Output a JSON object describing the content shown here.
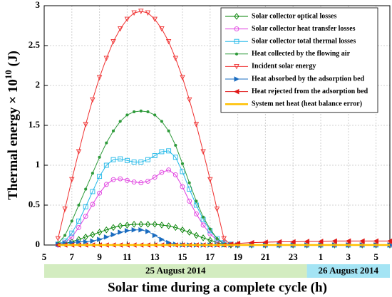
{
  "chart_data": {
    "type": "line",
    "xlabel": "Solar time during a complete cycle (h)",
    "ylabel": {
      "text": "Thermal energy × 10",
      "exponent": "10",
      "unit": " (J)"
    },
    "xlim": [
      5,
      30
    ],
    "ylim": [
      0,
      3
    ],
    "xticks": [
      5,
      7,
      9,
      11,
      13,
      15,
      17,
      19,
      21,
      23,
      {
        "value": 25,
        "label": "1"
      },
      {
        "value": 27,
        "label": "3"
      },
      {
        "value": 29,
        "label": "5"
      }
    ],
    "yticks": [
      0,
      0.5,
      1,
      1.5,
      2,
      2.5,
      3
    ],
    "grid": true,
    "legend": "upper right",
    "date_bands": [
      {
        "label": "25 August 2014",
        "start": 5,
        "end": 24,
        "color": "#d3ecc0"
      },
      {
        "label": "26 August 2014",
        "start": 24,
        "end": 30,
        "color": "#a4e4f4"
      }
    ],
    "x": [
      6,
      6.5,
      7,
      7.5,
      8,
      8.5,
      9,
      9.5,
      10,
      10.5,
      11,
      11.5,
      12,
      12.5,
      13,
      13.5,
      14,
      14.5,
      15,
      15.5,
      16,
      16.5,
      17,
      17.5,
      18,
      18.5,
      19,
      20,
      21,
      22,
      23,
      24,
      25,
      26,
      27,
      28,
      29,
      30
    ],
    "series": [
      {
        "name": "Solar collector optical losses",
        "color": "#008000",
        "marker": "diamond",
        "values": [
          0.01,
          0.02,
          0.04,
          0.07,
          0.1,
          0.13,
          0.16,
          0.19,
          0.22,
          0.24,
          0.25,
          0.26,
          0.26,
          0.26,
          0.26,
          0.25,
          0.24,
          0.22,
          0.19,
          0.16,
          0.12,
          0.09,
          0.06,
          0.03,
          0.01,
          0,
          0,
          0,
          0,
          0,
          0,
          0,
          0,
          0,
          0,
          0,
          0,
          0
        ]
      },
      {
        "name": "Solar collector heat transfer losses",
        "color": "#e040e0",
        "marker": "circle",
        "values": [
          0,
          0.03,
          0.1,
          0.22,
          0.36,
          0.51,
          0.65,
          0.76,
          0.82,
          0.83,
          0.81,
          0.79,
          0.78,
          0.8,
          0.85,
          0.91,
          0.94,
          0.88,
          0.73,
          0.55,
          0.39,
          0.25,
          0.14,
          0.06,
          0.02,
          0.01,
          0,
          0,
          0,
          0,
          0,
          0,
          0,
          0,
          0,
          0,
          0,
          0
        ]
      },
      {
        "name": "Solar collector total thermal losses",
        "color": "#20b8e8",
        "marker": "square",
        "values": [
          0.01,
          0.05,
          0.15,
          0.3,
          0.48,
          0.67,
          0.86,
          1.0,
          1.07,
          1.08,
          1.06,
          1.04,
          1.04,
          1.07,
          1.12,
          1.17,
          1.18,
          1.1,
          0.92,
          0.7,
          0.5,
          0.32,
          0.18,
          0.08,
          0.03,
          0.01,
          0,
          0,
          0,
          0,
          0,
          0,
          0,
          0,
          0,
          0,
          0,
          0
        ]
      },
      {
        "name": "Heat collected by the flowing air",
        "color": "#2e9a3a",
        "marker": "star",
        "values": [
          0.02,
          0.12,
          0.3,
          0.5,
          0.7,
          0.9,
          1.1,
          1.28,
          1.43,
          1.55,
          1.63,
          1.67,
          1.68,
          1.67,
          1.63,
          1.55,
          1.43,
          1.25,
          1.02,
          0.78,
          0.55,
          0.35,
          0.2,
          0.08,
          0.01,
          0,
          0,
          0,
          0,
          0,
          0,
          0,
          0,
          0,
          0,
          0,
          0,
          0
        ]
      },
      {
        "name": "Incident solar energy",
        "color": "#f03030",
        "marker": "triangle-down",
        "values": [
          0.08,
          0.45,
          0.82,
          1.17,
          1.51,
          1.82,
          2.1,
          2.34,
          2.55,
          2.71,
          2.83,
          2.91,
          2.93,
          2.91,
          2.83,
          2.71,
          2.55,
          2.34,
          2.1,
          1.82,
          1.51,
          1.17,
          0.82,
          0.45,
          0.08,
          0,
          0,
          0,
          0,
          0,
          0,
          0,
          0,
          0,
          0,
          0,
          0,
          0
        ]
      },
      {
        "name": "Heat absorbed by the adsorption bed",
        "color": "#1a6cc0",
        "marker": "triangle-right",
        "values": [
          0.01,
          0.02,
          0.03,
          0.04,
          0.04,
          0.05,
          0.07,
          0.1,
          0.13,
          0.16,
          0.18,
          0.19,
          0.19,
          0.17,
          0.12,
          0.07,
          0.03,
          0.01,
          0,
          0,
          0,
          0,
          0,
          0,
          0,
          0,
          0,
          0,
          0,
          0,
          0,
          0,
          0,
          0,
          0,
          0,
          0,
          0
        ]
      },
      {
        "name": "Heat rejected from the adsorption bed",
        "color": "#e01818",
        "marker": "triangle-left",
        "values": [
          0,
          0,
          0,
          0,
          0,
          0,
          0,
          0,
          0,
          0,
          0,
          0,
          0,
          0,
          0,
          0,
          0,
          0,
          0,
          0,
          0,
          0,
          0,
          0,
          0,
          0.01,
          0.02,
          0.03,
          0.035,
          0.04,
          0.04,
          0.045,
          0.045,
          0.05,
          0.05,
          0.05,
          0.05,
          0.05
        ]
      },
      {
        "name": "System net heat (heat balance error)",
        "color": "#ffc000",
        "marker": "none",
        "values": [
          0,
          0,
          0,
          0,
          0,
          0,
          0,
          0,
          0,
          0,
          0,
          0,
          0,
          0,
          0,
          0,
          0,
          0,
          0,
          0,
          0,
          0,
          0,
          0,
          0,
          0,
          0,
          0,
          0,
          0,
          0,
          0,
          0,
          0,
          0,
          0,
          0,
          0
        ]
      }
    ]
  }
}
